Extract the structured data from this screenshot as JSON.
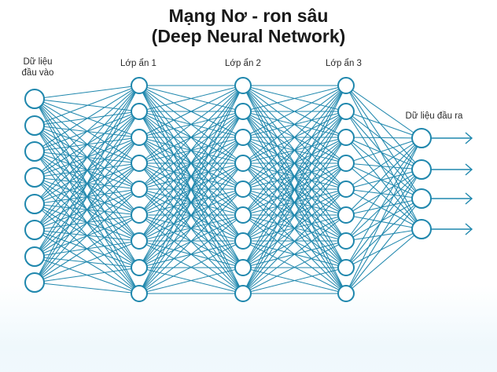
{
  "title": {
    "line1": "Mạng Nơ - ron sâu",
    "line2": "(Deep Neural Network)"
  },
  "layers": [
    {
      "label_line1": "Dữ liệu",
      "label_line2": "đầu vào",
      "nodes": 8
    },
    {
      "label_line1": "Lớp ẩn 1",
      "label_line2": "",
      "nodes": 9
    },
    {
      "label_line1": "Lớp ẩn 2",
      "label_line2": "",
      "nodes": 9
    },
    {
      "label_line1": "Lớp ẩn 3",
      "label_line2": "",
      "nodes": 9
    },
    {
      "label_line1": "Dữ liệu đầu ra",
      "label_line2": "",
      "nodes": 4
    }
  ],
  "colors": {
    "edge": "#1f87ad",
    "node_stroke": "#1f87ad",
    "node_fill": "#ffffff",
    "arrow": "#1f87ad"
  }
}
